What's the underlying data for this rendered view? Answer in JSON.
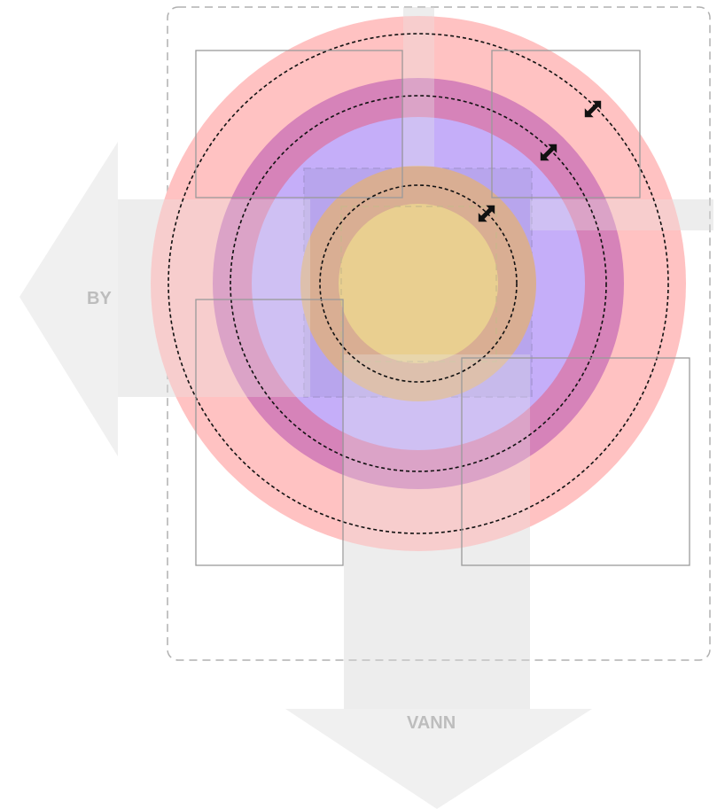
{
  "labels": {
    "west_arrow": "BY",
    "south_arrow": "VANN"
  },
  "colors": {
    "arrow": "#f0f0f0",
    "arrow_label": "#bdbdbd",
    "outer_ring": "#ffc2c2",
    "purple_ring": "#d683b9",
    "lavender_ring": "#c5aef9",
    "inner_square": "#b8a5ed",
    "brown_ring": "#d9ae93",
    "core": "#e9cf90",
    "box_border": "#9a9a9a",
    "dashed_frame": "#b0b0b0",
    "dotted_ring": "#111111",
    "handle": "#111111"
  },
  "icons": {
    "resize_handle": "diagonal-resize-arrow-icon"
  }
}
